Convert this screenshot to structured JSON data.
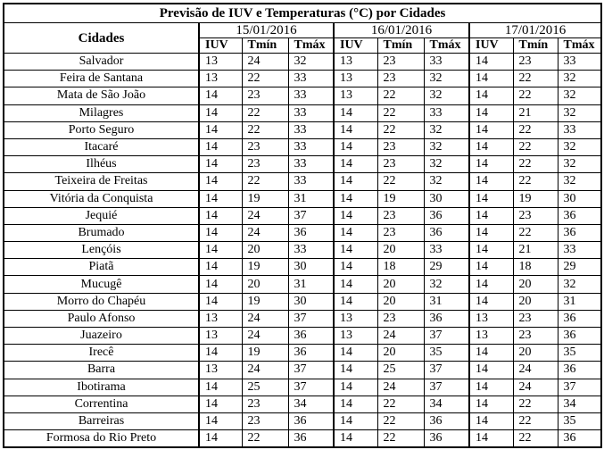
{
  "title": "Previsão de IUV e Temperaturas (°C) por Cidades",
  "table": {
    "city_header": "Cidades",
    "dates": [
      "15/01/2016",
      "16/01/2016",
      "17/01/2016"
    ],
    "subheaders": [
      "IUV",
      "Tmín",
      "Tmáx"
    ],
    "rows": [
      [
        "Salvador",
        13,
        24,
        32,
        13,
        23,
        33,
        14,
        23,
        33
      ],
      [
        "Feira de Santana",
        13,
        22,
        33,
        13,
        23,
        32,
        14,
        22,
        32
      ],
      [
        "Mata de São João",
        14,
        23,
        33,
        13,
        22,
        32,
        14,
        22,
        32
      ],
      [
        "Milagres",
        14,
        22,
        33,
        14,
        22,
        33,
        14,
        21,
        32
      ],
      [
        "Porto Seguro",
        14,
        22,
        33,
        14,
        22,
        32,
        14,
        22,
        33
      ],
      [
        "Itacaré",
        14,
        23,
        33,
        14,
        23,
        32,
        14,
        22,
        32
      ],
      [
        "Ilhéus",
        14,
        23,
        33,
        14,
        23,
        32,
        14,
        22,
        32
      ],
      [
        "Teixeira de Freitas",
        14,
        22,
        33,
        14,
        22,
        32,
        14,
        22,
        32
      ],
      [
        "Vitória da Conquista",
        14,
        19,
        31,
        14,
        19,
        30,
        14,
        19,
        30
      ],
      [
        "Jequié",
        14,
        24,
        37,
        14,
        23,
        36,
        14,
        23,
        36
      ],
      [
        "Brumado",
        14,
        24,
        36,
        14,
        23,
        36,
        14,
        22,
        36
      ],
      [
        "Lençóis",
        14,
        20,
        33,
        14,
        20,
        33,
        14,
        21,
        33
      ],
      [
        "Piatã",
        14,
        19,
        30,
        14,
        18,
        29,
        14,
        18,
        29
      ],
      [
        "Mucugê",
        14,
        20,
        31,
        14,
        20,
        32,
        14,
        20,
        32
      ],
      [
        "Morro do Chapéu",
        14,
        19,
        30,
        14,
        20,
        31,
        14,
        20,
        31
      ],
      [
        "Paulo Afonso",
        13,
        24,
        37,
        13,
        23,
        36,
        13,
        23,
        36
      ],
      [
        "Juazeiro",
        13,
        24,
        36,
        13,
        24,
        37,
        13,
        23,
        36
      ],
      [
        "Irecê",
        14,
        19,
        36,
        14,
        20,
        35,
        14,
        20,
        35
      ],
      [
        "Barra",
        13,
        24,
        37,
        14,
        25,
        37,
        14,
        24,
        36
      ],
      [
        "Ibotirama",
        14,
        25,
        37,
        14,
        24,
        37,
        14,
        24,
        37
      ],
      [
        "Correntina",
        14,
        23,
        34,
        14,
        22,
        34,
        14,
        22,
        34
      ],
      [
        "Barreiras",
        14,
        23,
        36,
        14,
        22,
        36,
        14,
        22,
        35
      ],
      [
        "Formosa do Rio Preto",
        14,
        22,
        36,
        14,
        22,
        36,
        14,
        22,
        36
      ]
    ]
  }
}
